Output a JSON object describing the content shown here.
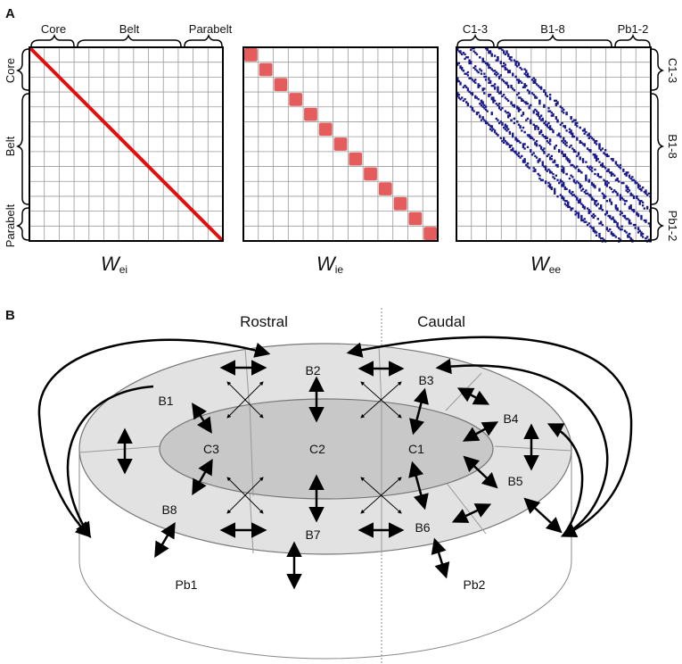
{
  "panel_a": {
    "label": "A",
    "groups_top_left": [
      "Core",
      "Belt",
      "Parabelt"
    ],
    "groups_side_left": [
      "Core",
      "Belt",
      "Parabelt"
    ],
    "groups_top_right": [
      "C1-3",
      "B1-8",
      "Pb1-2"
    ],
    "groups_side_right": [
      "C1-3",
      "B1-8",
      "Pb1-2"
    ],
    "matrices": [
      {
        "main": "W",
        "sub": "ei",
        "pattern": "diagonal-line",
        "color": "#e01010"
      },
      {
        "main": "W",
        "sub": "ie",
        "pattern": "diagonal-blocks",
        "color": "#e04040"
      },
      {
        "main": "W",
        "sub": "ee",
        "pattern": "banded-sparse",
        "color": "#1a1a8c"
      }
    ],
    "grid_divisions": 13
  },
  "panel_b": {
    "label": "B",
    "rostral_label": "Rostral",
    "caudal_label": "Caudal",
    "core_nodes": [
      "C3",
      "C2",
      "C1"
    ],
    "belt_nodes": [
      "B1",
      "B2",
      "B3",
      "B4",
      "B5",
      "B6",
      "B7",
      "B8"
    ],
    "parabelt_nodes": [
      "Pb1",
      "Pb2"
    ],
    "colors": {
      "core_fill": "#c8c8c8",
      "belt_fill": "#e2e2e2",
      "outline": "#777777",
      "arrow": "#000000"
    }
  }
}
